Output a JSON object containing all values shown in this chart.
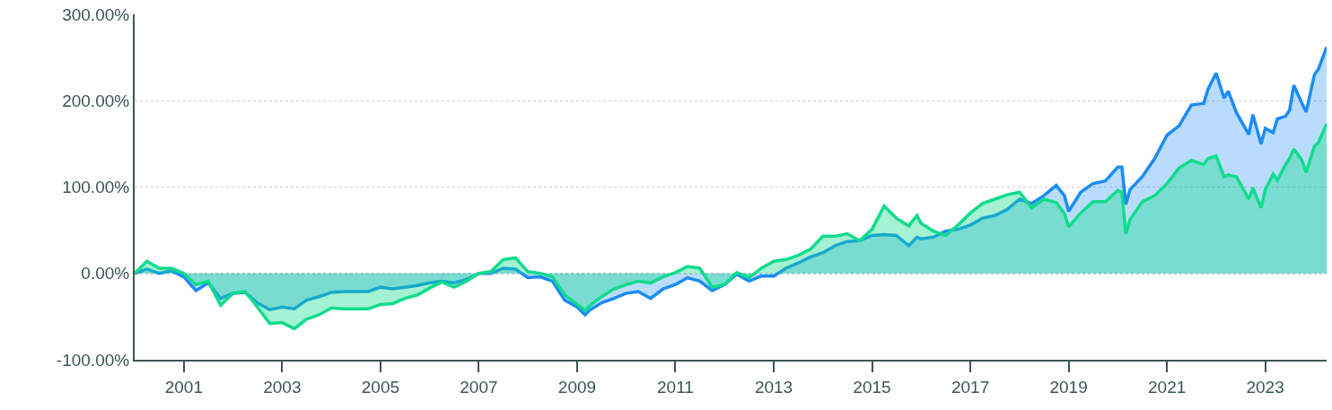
{
  "chart_data": {
    "type": "area",
    "x": [
      "2000-01",
      "2000-04",
      "2000-07",
      "2000-10",
      "2001-01",
      "2001-04",
      "2001-07",
      "2001-10",
      "2002-01",
      "2002-04",
      "2002-07",
      "2002-10",
      "2003-01",
      "2003-04",
      "2003-07",
      "2003-10",
      "2004-01",
      "2004-04",
      "2004-07",
      "2004-10",
      "2005-01",
      "2005-04",
      "2005-07",
      "2005-10",
      "2006-01",
      "2006-04",
      "2006-07",
      "2006-10",
      "2007-01",
      "2007-04",
      "2007-07",
      "2007-10",
      "2008-01",
      "2008-04",
      "2008-07",
      "2008-10",
      "2009-01",
      "2009-03",
      "2009-04",
      "2009-07",
      "2009-10",
      "2010-01",
      "2010-04",
      "2010-07",
      "2010-10",
      "2011-01",
      "2011-04",
      "2011-07",
      "2011-10",
      "2012-01",
      "2012-04",
      "2012-07",
      "2012-10",
      "2013-01",
      "2013-04",
      "2013-07",
      "2013-10",
      "2014-01",
      "2014-04",
      "2014-07",
      "2014-10",
      "2015-01",
      "2015-04",
      "2015-07",
      "2015-10",
      "2015-12",
      "2016-01",
      "2016-04",
      "2016-07",
      "2016-10",
      "2017-01",
      "2017-04",
      "2017-07",
      "2017-10",
      "2018-01",
      "2018-04",
      "2018-07",
      "2018-10",
      "2018-12",
      "2019-01",
      "2019-04",
      "2019-07",
      "2019-10",
      "2020-01",
      "2020-02",
      "2020-03",
      "2020-04",
      "2020-07",
      "2020-10",
      "2021-01",
      "2021-04",
      "2021-07",
      "2021-10",
      "2021-11",
      "2022-01",
      "2022-03",
      "2022-04",
      "2022-06",
      "2022-09",
      "2022-10",
      "2022-12",
      "2023-01",
      "2023-03",
      "2023-04",
      "2023-06",
      "2023-07",
      "2023-08",
      "2023-10",
      "2023-11",
      "2024-01",
      "2024-02",
      "2024-04"
    ],
    "series": [
      {
        "color": "#1a8cf5",
        "values": [
          0,
          5,
          0,
          3,
          -4,
          -20,
          -11,
          -29,
          -23,
          -22,
          -34,
          -42,
          -39,
          -41,
          -31,
          -27,
          -22,
          -21,
          -21,
          -21,
          -16,
          -18,
          -16,
          -14,
          -11,
          -9,
          -11,
          -7,
          0,
          0,
          6,
          5,
          -5,
          -4,
          -9,
          -31,
          -39,
          -48,
          -43,
          -34,
          -29,
          -23,
          -21,
          -29,
          -18,
          -13,
          -5,
          -9,
          -20,
          -13,
          -1,
          -9,
          -3,
          -3,
          6,
          12,
          19,
          24,
          32,
          37,
          38,
          44,
          45,
          44,
          32,
          42,
          40,
          42,
          49,
          51,
          56,
          64,
          67,
          74,
          86,
          81,
          90,
          102,
          90,
          72,
          94,
          104,
          107,
          123,
          123,
          80,
          97,
          112,
          133,
          160,
          171,
          195,
          197,
          213,
          232,
          203,
          211,
          186,
          161,
          184,
          150,
          168,
          163,
          179,
          182,
          189,
          218,
          197,
          187,
          230,
          237,
          262
        ]
      },
      {
        "color": "#10dc8c",
        "values": [
          0,
          14,
          6,
          6,
          0,
          -13,
          -9,
          -37,
          -23,
          -21,
          -39,
          -58,
          -57,
          -64,
          -53,
          -48,
          -40,
          -41,
          -41,
          -41,
          -36,
          -35,
          -29,
          -25,
          -17,
          -10,
          -16,
          -9,
          0,
          2,
          16,
          18,
          2,
          0,
          -4,
          -25,
          -36,
          -43,
          -38,
          -27,
          -18,
          -13,
          -9,
          -11,
          -4,
          1,
          8,
          6,
          -16,
          -13,
          1,
          -5,
          6,
          14,
          16,
          21,
          28,
          43,
          43,
          46,
          38,
          51,
          78,
          64,
          55,
          67,
          58,
          49,
          44,
          56,
          70,
          81,
          86,
          91,
          94,
          76,
          86,
          82,
          69,
          54,
          70,
          83,
          83,
          96,
          94,
          46,
          62,
          83,
          90,
          104,
          122,
          131,
          126,
          133,
          136,
          112,
          114,
          112,
          86,
          99,
          76,
          97,
          115,
          108,
          126,
          133,
          144,
          131,
          117,
          147,
          152,
          173
        ]
      }
    ],
    "xlim": [
      "2000-01",
      "2024-04"
    ],
    "xticks": [
      {
        "value": "2001-01",
        "label": "2001"
      },
      {
        "value": "2003-01",
        "label": "2003"
      },
      {
        "value": "2005-01",
        "label": "2005"
      },
      {
        "value": "2007-01",
        "label": "2007"
      },
      {
        "value": "2009-01",
        "label": "2009"
      },
      {
        "value": "2011-01",
        "label": "2011"
      },
      {
        "value": "2013-01",
        "label": "2013"
      },
      {
        "value": "2015-01",
        "label": "2015"
      },
      {
        "value": "2017-01",
        "label": "2017"
      },
      {
        "value": "2019-01",
        "label": "2019"
      },
      {
        "value": "2021-01",
        "label": "2021"
      },
      {
        "value": "2023-01",
        "label": "2023"
      }
    ],
    "ylim": [
      -100,
      300
    ],
    "yticks": [
      {
        "value": -100,
        "label": "-100.00%"
      },
      {
        "value": 0,
        "label": "0.00%"
      },
      {
        "value": 100,
        "label": "100.00%"
      },
      {
        "value": 200,
        "label": "200.00%"
      },
      {
        "value": 300,
        "label": "300.00%"
      }
    ],
    "grid": "y"
  }
}
